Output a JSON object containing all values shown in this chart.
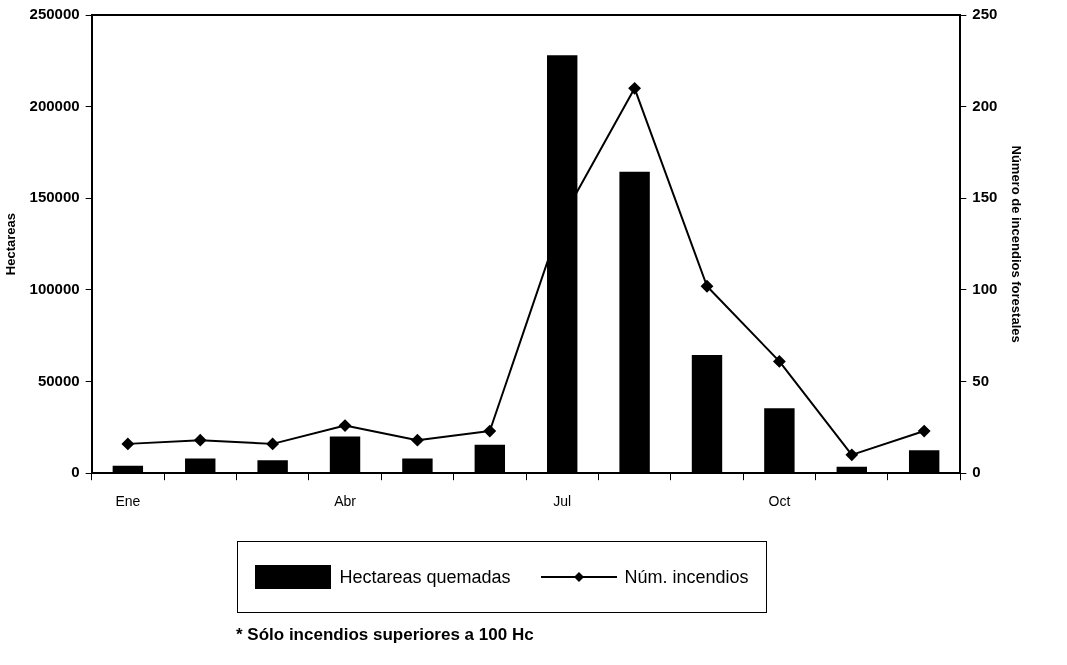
{
  "chart_data": {
    "type": "bar",
    "categories": [
      "Ene",
      null,
      null,
      "Abr",
      null,
      null,
      "Jul",
      null,
      null,
      "Oct",
      null,
      null
    ],
    "series": [
      {
        "name": "Hectareas quemadas",
        "color": "#000000",
        "values": [
          4000,
          8000,
          7000,
          20000,
          8000,
          15500,
          228000,
          164500,
          64500,
          35500,
          3500,
          12500
        ]
      },
      {
        "name": "Núm. incendios",
        "type": "line",
        "axis": "y2",
        "color": "#000000",
        "marker": "diamond",
        "values": [
          16,
          18,
          16,
          26,
          18,
          23,
          139,
          210,
          102,
          61,
          10,
          23
        ]
      }
    ],
    "ylabel": "Hectareas",
    "y2label": "Número de incendios forestales",
    "ylim": [
      0,
      250000
    ],
    "yticks": [
      0,
      50000,
      100000,
      150000,
      200000,
      250000
    ],
    "y2lim": [
      0,
      250
    ],
    "y2ticks": [
      0,
      50,
      100,
      150,
      200,
      250
    ],
    "grid": false,
    "legend": "bottom",
    "annotations": [
      "* Sólo incendios superiores a 100 Hc"
    ]
  }
}
